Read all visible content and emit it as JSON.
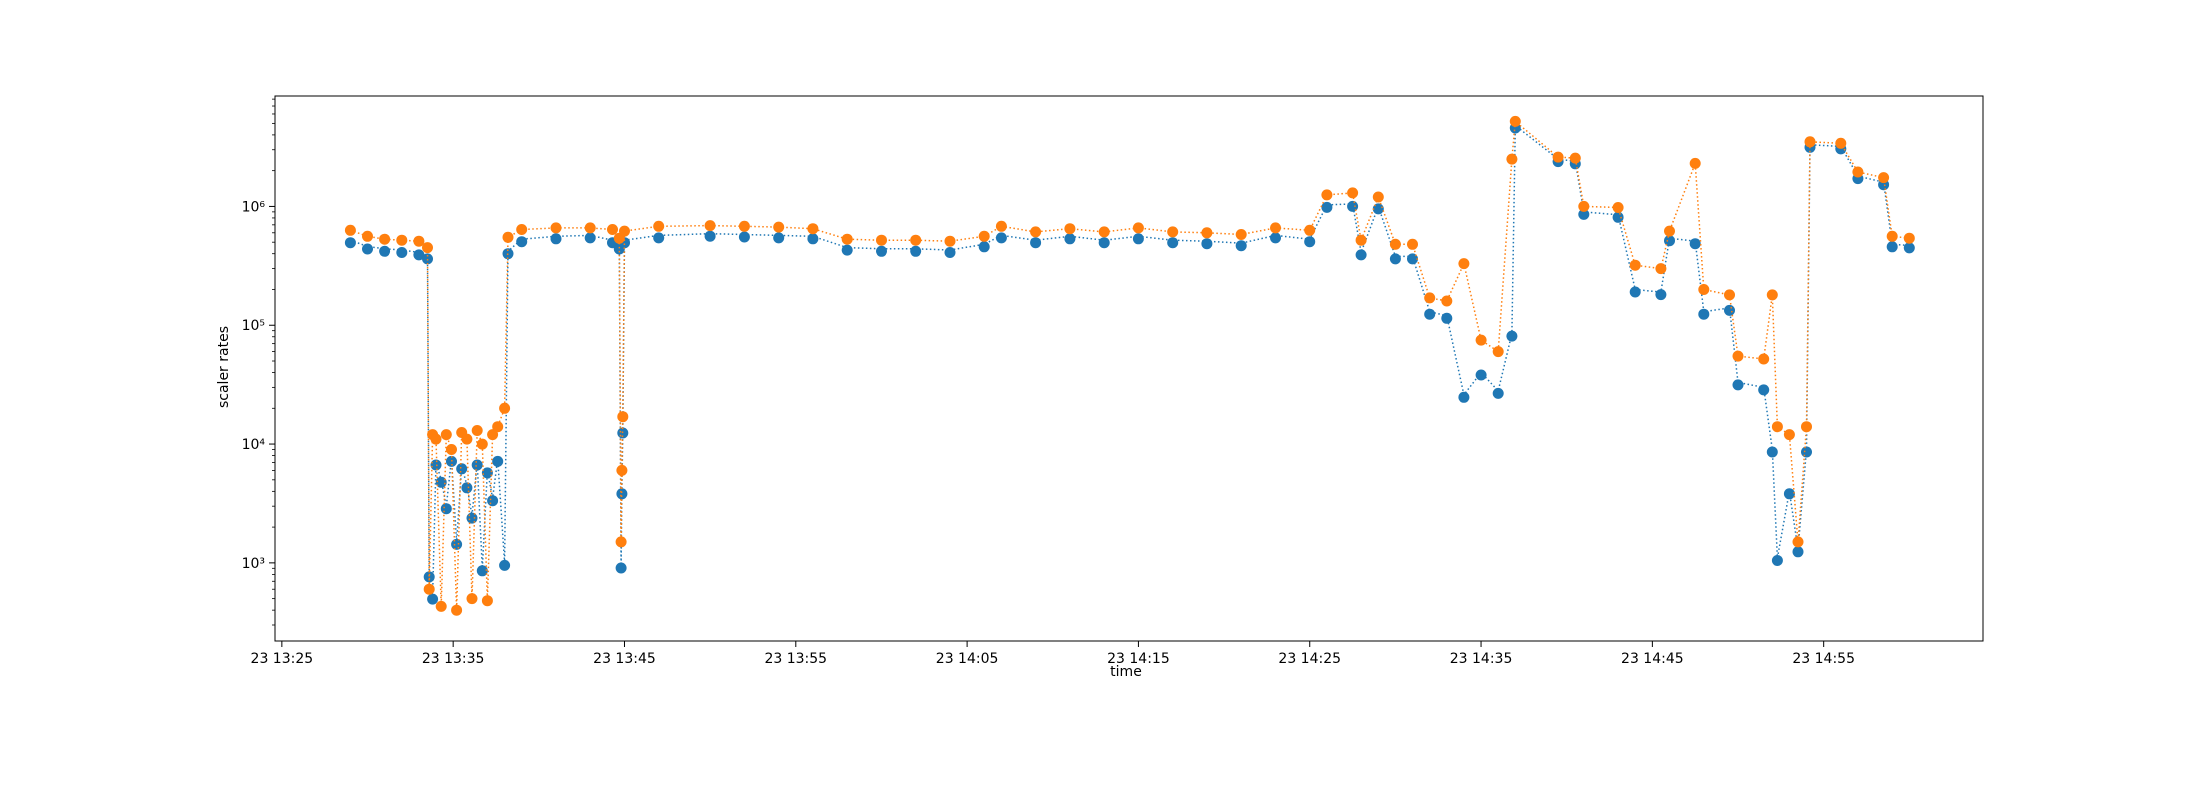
{
  "chart_data": {
    "type": "scatter",
    "title": "",
    "xlabel": "time",
    "ylabel": "scaler rates",
    "yscale": "log",
    "grid": false,
    "x_ticks": [
      "23 13:25",
      "23 13:35",
      "23 13:45",
      "23 13:55",
      "23 14:05",
      "23 14:15",
      "23 14:25",
      "23 14:35",
      "23 14:45",
      "23 14:55"
    ],
    "y_ticks": [
      {
        "value": 1000,
        "label": "10³"
      },
      {
        "value": 10000,
        "label": "10⁴"
      },
      {
        "value": 100000,
        "label": "10⁵"
      },
      {
        "value": 1000000,
        "label": "10⁶"
      }
    ],
    "xlim": [
      "13:24.6",
      "15:04.3"
    ],
    "ylim": [
      220,
      8500000
    ],
    "colors": [
      "#1f77b4",
      "#ff7f0e"
    ],
    "series": [
      {
        "color": "#1f77b4",
        "points": [
          [
            "13:29",
            520000
          ],
          [
            "13:30",
            460000
          ],
          [
            "13:31",
            440000
          ],
          [
            "13:32",
            430000
          ],
          [
            "13:33",
            410000
          ],
          [
            "13:33.5",
            380000
          ],
          [
            "13:33.6",
            800
          ],
          [
            "13:33.8",
            520
          ],
          [
            "13:34",
            7000
          ],
          [
            "13:34.3",
            5000
          ],
          [
            "13:34.6",
            3000
          ],
          [
            "13:34.9",
            7500
          ],
          [
            "13:35.2",
            1500
          ],
          [
            "13:35.5",
            6500
          ],
          [
            "13:35.8",
            4500
          ],
          [
            "13:36.1",
            2500
          ],
          [
            "13:36.4",
            7000
          ],
          [
            "13:36.7",
            900
          ],
          [
            "13:37",
            6000
          ],
          [
            "13:37.3",
            3500
          ],
          [
            "13:37.6",
            7500
          ],
          [
            "13:38",
            1000
          ],
          [
            "13:38.2",
            420000
          ],
          [
            "13:39",
            530000
          ],
          [
            "13:41",
            560000
          ],
          [
            "13:43",
            570000
          ],
          [
            "13:44.3",
            520000
          ],
          [
            "13:44.7",
            460000
          ],
          [
            "13:44.8",
            950
          ],
          [
            "13:44.85",
            4000
          ],
          [
            "13:44.9",
            13000
          ],
          [
            "13:45",
            520000
          ],
          [
            "13:47",
            570000
          ],
          [
            "13:50",
            590000
          ],
          [
            "13:52",
            580000
          ],
          [
            "13:54",
            570000
          ],
          [
            "13:56",
            560000
          ],
          [
            "13:58",
            450000
          ],
          [
            "14:00",
            440000
          ],
          [
            "14:02",
            440000
          ],
          [
            "14:04",
            430000
          ],
          [
            "14:06",
            480000
          ],
          [
            "14:07",
            570000
          ],
          [
            "14:09",
            520000
          ],
          [
            "14:11",
            560000
          ],
          [
            "14:13",
            520000
          ],
          [
            "14:15",
            560000
          ],
          [
            "14:17",
            520000
          ],
          [
            "14:19",
            510000
          ],
          [
            "14:21",
            490000
          ],
          [
            "14:23",
            570000
          ],
          [
            "14:25",
            530000
          ],
          [
            "14:26",
            1030000
          ],
          [
            "14:27.5",
            1050000
          ],
          [
            "14:28",
            410000
          ],
          [
            "14:29",
            1000000
          ],
          [
            "14:30",
            380000
          ],
          [
            "14:31",
            380000
          ],
          [
            "14:32",
            130000
          ],
          [
            "14:33",
            120000
          ],
          [
            "14:34",
            26000
          ],
          [
            "14:35",
            40000
          ],
          [
            "14:36",
            28000
          ],
          [
            "14:36.8",
            85000
          ],
          [
            "14:37",
            4800000
          ],
          [
            "14:39.5",
            2500000
          ],
          [
            "14:40.5",
            2400000
          ],
          [
            "14:41",
            900000
          ],
          [
            "14:43",
            850000
          ],
          [
            "14:44",
            200000
          ],
          [
            "14:45.5",
            190000
          ],
          [
            "14:46",
            540000
          ],
          [
            "14:47.5",
            510000
          ],
          [
            "14:48",
            130000
          ],
          [
            "14:49.5",
            140000
          ],
          [
            "14:50",
            33000
          ],
          [
            "14:51.5",
            30000
          ],
          [
            "14:52",
            9000
          ],
          [
            "14:52.3",
            1100
          ],
          [
            "14:53",
            4000
          ],
          [
            "14:53.5",
            1300
          ],
          [
            "14:54",
            9000
          ],
          [
            "14:54.2",
            3300000
          ],
          [
            "14:56",
            3200000
          ],
          [
            "14:57",
            1800000
          ],
          [
            "14:58.5",
            1600000
          ],
          [
            "14:59",
            480000
          ],
          [
            "15:00",
            470000
          ]
        ]
      },
      {
        "color": "#ff7f0e",
        "points": [
          [
            "13:29",
            630000
          ],
          [
            "13:30",
            560000
          ],
          [
            "13:31",
            530000
          ],
          [
            "13:32",
            520000
          ],
          [
            "13:33",
            510000
          ],
          [
            "13:33.5",
            450000
          ],
          [
            "13:33.6",
            600
          ],
          [
            "13:33.8",
            12000
          ],
          [
            "13:34",
            11000
          ],
          [
            "13:34.3",
            430
          ],
          [
            "13:34.6",
            12000
          ],
          [
            "13:34.9",
            9000
          ],
          [
            "13:35.2",
            400
          ],
          [
            "13:35.5",
            12500
          ],
          [
            "13:35.8",
            11000
          ],
          [
            "13:36.1",
            500
          ],
          [
            "13:36.4",
            13000
          ],
          [
            "13:36.7",
            10000
          ],
          [
            "13:37",
            480
          ],
          [
            "13:37.3",
            12000
          ],
          [
            "13:37.6",
            14000
          ],
          [
            "13:38",
            20000
          ],
          [
            "13:38.2",
            550000
          ],
          [
            "13:39",
            640000
          ],
          [
            "13:41",
            660000
          ],
          [
            "13:43",
            660000
          ],
          [
            "13:44.3",
            640000
          ],
          [
            "13:44.7",
            540000
          ],
          [
            "13:44.8",
            1500
          ],
          [
            "13:44.85",
            6000
          ],
          [
            "13:44.9",
            17000
          ],
          [
            "13:45",
            620000
          ],
          [
            "13:47",
            680000
          ],
          [
            "13:50",
            690000
          ],
          [
            "13:52",
            680000
          ],
          [
            "13:54",
            670000
          ],
          [
            "13:56",
            650000
          ],
          [
            "13:58",
            530000
          ],
          [
            "14:00",
            520000
          ],
          [
            "14:02",
            520000
          ],
          [
            "14:04",
            510000
          ],
          [
            "14:06",
            560000
          ],
          [
            "14:07",
            680000
          ],
          [
            "14:09",
            610000
          ],
          [
            "14:11",
            650000
          ],
          [
            "14:13",
            610000
          ],
          [
            "14:15",
            660000
          ],
          [
            "14:17",
            610000
          ],
          [
            "14:19",
            600000
          ],
          [
            "14:21",
            580000
          ],
          [
            "14:23",
            660000
          ],
          [
            "14:25",
            630000
          ],
          [
            "14:26",
            1250000
          ],
          [
            "14:27.5",
            1300000
          ],
          [
            "14:28",
            520000
          ],
          [
            "14:29",
            1200000
          ],
          [
            "14:30",
            480000
          ],
          [
            "14:31",
            480000
          ],
          [
            "14:32",
            170000
          ],
          [
            "14:33",
            160000
          ],
          [
            "14:34",
            330000
          ],
          [
            "14:35",
            75000
          ],
          [
            "14:36",
            60000
          ],
          [
            "14:36.8",
            2500000
          ],
          [
            "14:37",
            5200000
          ],
          [
            "14:39.5",
            2600000
          ],
          [
            "14:40.5",
            2550000
          ],
          [
            "14:41",
            1000000
          ],
          [
            "14:43",
            980000
          ],
          [
            "14:44",
            320000
          ],
          [
            "14:45.5",
            300000
          ],
          [
            "14:46",
            620000
          ],
          [
            "14:47.5",
            2300000
          ],
          [
            "14:48",
            200000
          ],
          [
            "14:49.5",
            180000
          ],
          [
            "14:50",
            55000
          ],
          [
            "14:51.5",
            52000
          ],
          [
            "14:52",
            180000
          ],
          [
            "14:52.3",
            14000
          ],
          [
            "14:53",
            12000
          ],
          [
            "14:53.5",
            1500
          ],
          [
            "14:54",
            14000
          ],
          [
            "14:54.2",
            3500000
          ],
          [
            "14:56",
            3400000
          ],
          [
            "14:57",
            1950000
          ],
          [
            "14:58.5",
            1750000
          ],
          [
            "14:59",
            560000
          ],
          [
            "15:00",
            540000
          ]
        ]
      }
    ]
  }
}
